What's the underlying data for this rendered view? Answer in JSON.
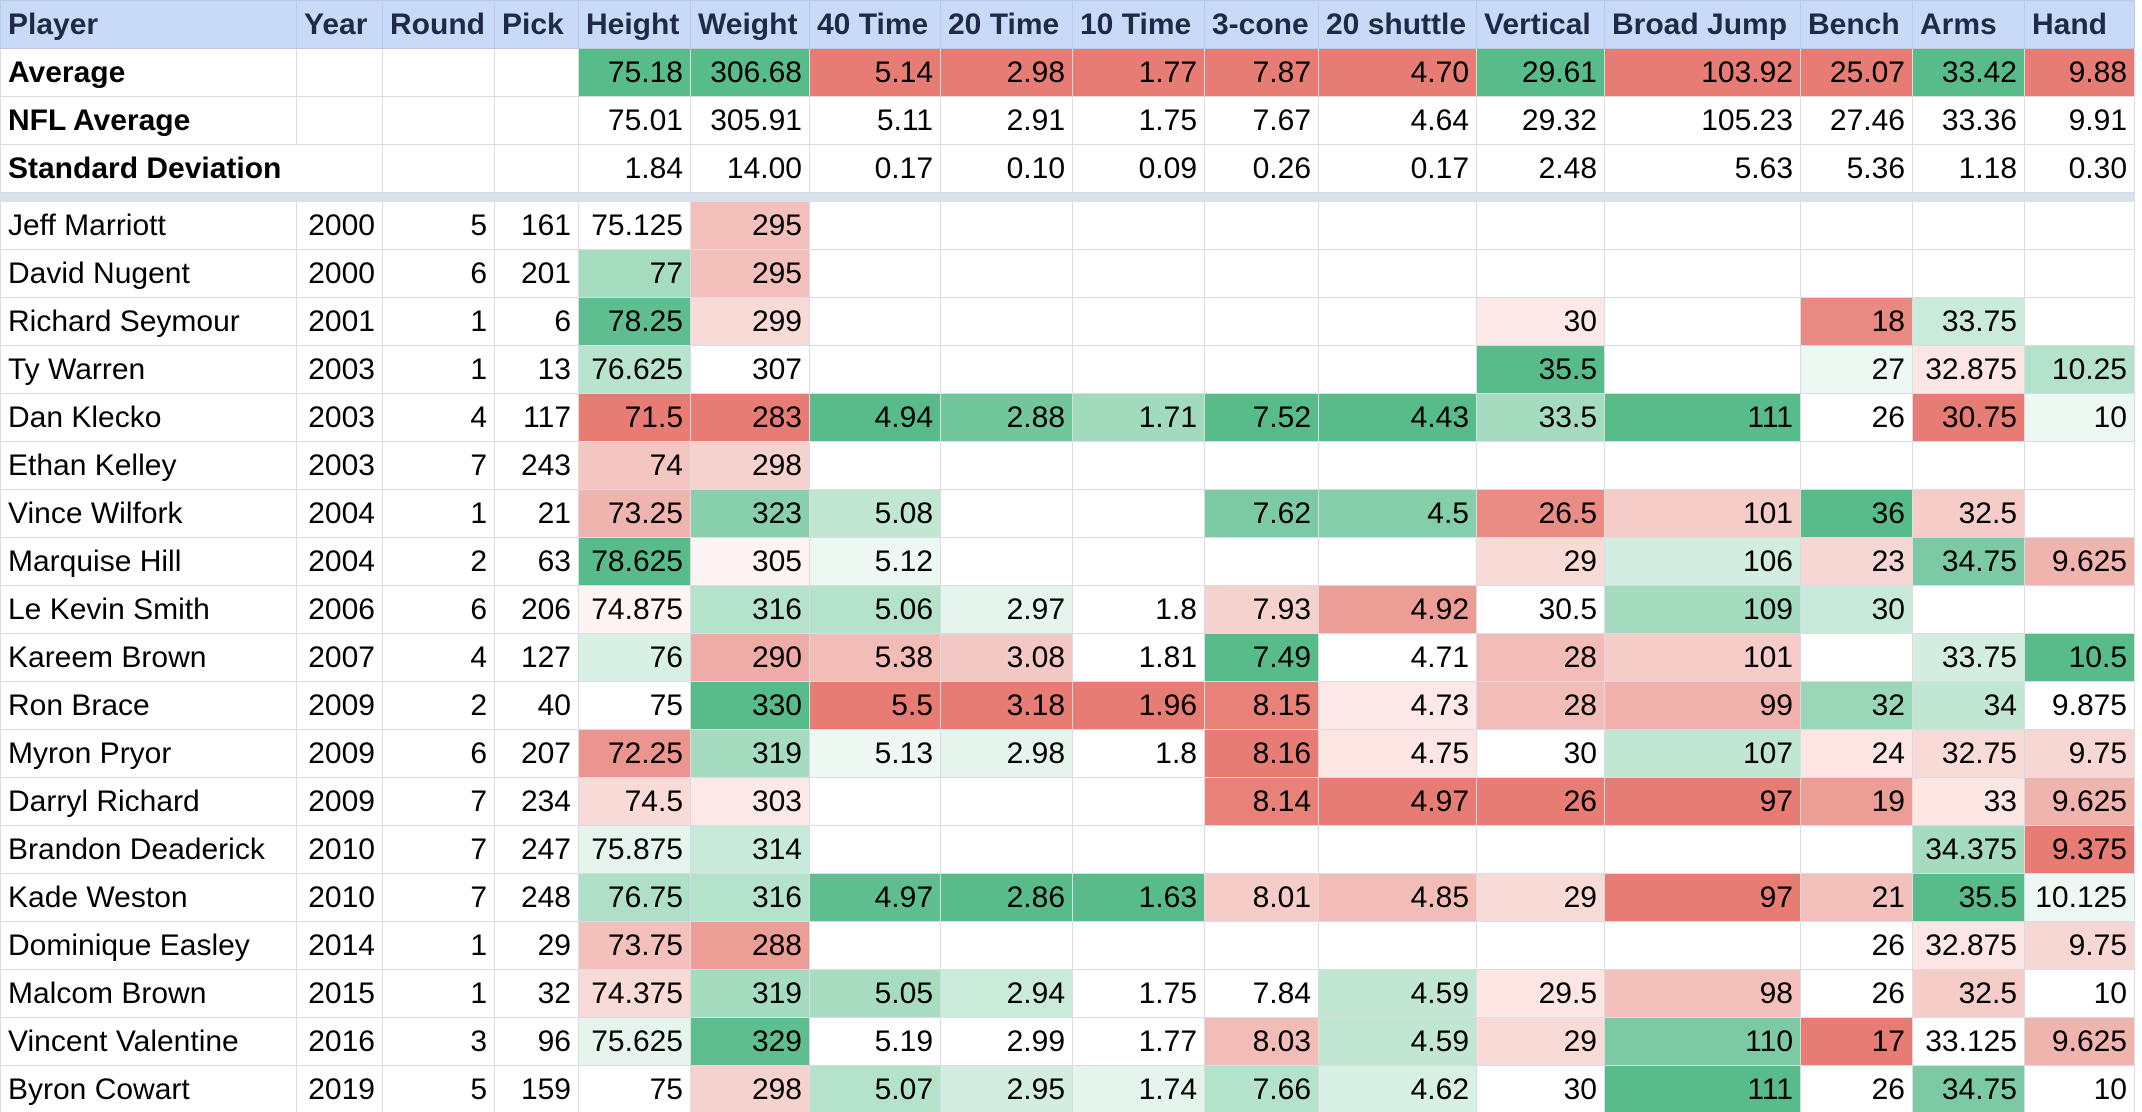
{
  "columns": [
    "Player",
    "Year",
    "Round",
    "Pick",
    "Height",
    "Weight",
    "40 Time",
    "20 Time",
    "10 Time",
    "3-cone",
    "20 shuttle",
    "Vertical",
    "Broad Jump",
    "Bench",
    "Arms",
    "Hand"
  ],
  "summary_rows": [
    {
      "label": "Average",
      "cells": [
        "",
        "",
        "",
        "75.18",
        "306.68",
        "5.14",
        "2.98",
        "1.77",
        "7.87",
        "4.70",
        "29.61",
        "103.92",
        "25.07",
        "33.42",
        "9.88"
      ]
    },
    {
      "label": "NFL Average",
      "cells": [
        "",
        "",
        "",
        "75.01",
        "305.91",
        "5.11",
        "2.91",
        "1.75",
        "7.67",
        "4.64",
        "29.32",
        "105.23",
        "27.46",
        "33.36",
        "9.91"
      ]
    },
    {
      "label": "Standard Deviation",
      "cells": [
        "",
        "",
        "",
        "1.84",
        "14.00",
        "0.17",
        "0.10",
        "0.09",
        "0.26",
        "0.17",
        "2.48",
        "5.63",
        "5.36",
        "1.18",
        "0.30"
      ]
    }
  ],
  "average_colors": [
    "",
    "",
    "",
    "#57bb8a",
    "#57bb8a",
    "#e67c73",
    "#e67c73",
    "#e67c73",
    "#e67c73",
    "#e67c73",
    "#57bb8a",
    "#e67c73",
    "#e67c73",
    "#57bb8a",
    "#e67c73"
  ],
  "players": [
    {
      "cells": [
        "Jeff Marriott",
        "2000",
        "5",
        "161",
        "75.125",
        "295",
        "",
        "",
        "",
        "",
        "",
        "",
        "",
        "",
        "",
        ""
      ],
      "colors": [
        "",
        "",
        "",
        "",
        "",
        "#f3c0bb",
        "",
        "",
        "",
        "",
        "",
        "",
        "",
        "",
        "",
        ""
      ]
    },
    {
      "cells": [
        "David Nugent",
        "2000",
        "6",
        "201",
        "77",
        "295",
        "",
        "",
        "",
        "",
        "",
        "",
        "",
        "",
        "",
        ""
      ],
      "colors": [
        "",
        "",
        "",
        "",
        "#a6dcc0",
        "#f3c0bb",
        "",
        "",
        "",
        "",
        "",
        "",
        "",
        "",
        "",
        ""
      ]
    },
    {
      "cells": [
        "Richard Seymour",
        "2001",
        "1",
        "6",
        "78.25",
        "299",
        "",
        "",
        "",
        "",
        "",
        "30",
        "",
        "18",
        "33.75",
        ""
      ],
      "colors": [
        "",
        "",
        "",
        "",
        "#5fbe8f",
        "#f8dad7",
        "",
        "",
        "",
        "",
        "",
        "#fce9e7",
        "",
        "#e88a82",
        "#cbebda",
        ""
      ]
    },
    {
      "cells": [
        "Ty Warren",
        "2003",
        "1",
        "13",
        "76.625",
        "307",
        "",
        "",
        "",
        "",
        "",
        "35.5",
        "",
        "27",
        "32.875",
        "10.25"
      ],
      "colors": [
        "",
        "",
        "",
        "",
        "#b8e3cd",
        "#ffffff",
        "",
        "",
        "",
        "",
        "",
        "#57bb8a",
        "",
        "#eef8f3",
        "#fbe6e4",
        "#b5e2cb"
      ]
    },
    {
      "cells": [
        "Dan Klecko",
        "2003",
        "4",
        "117",
        "71.5",
        "283",
        "4.94",
        "2.88",
        "1.71",
        "7.52",
        "4.43",
        "33.5",
        "111",
        "26",
        "30.75",
        "10"
      ],
      "colors": [
        "",
        "",
        "",
        "",
        "#e67c73",
        "#e67c73",
        "#57bb8a",
        "#72c69c",
        "#a2dabd",
        "#57bb8a",
        "#57bb8a",
        "#a5dbbf",
        "#57bb8a",
        "#ffffff",
        "#e67c73",
        "#eef8f3"
      ]
    },
    {
      "cells": [
        "Ethan Kelley",
        "2003",
        "7",
        "243",
        "74",
        "298",
        "",
        "",
        "",
        "",
        "",
        "",
        "",
        "",
        "",
        ""
      ],
      "colors": [
        "",
        "",
        "",
        "",
        "#f4c6c2",
        "#f6d2ce",
        "",
        "",
        "",
        "",
        "",
        "",
        "",
        "",
        "",
        ""
      ]
    },
    {
      "cells": [
        "Vince Wilfork",
        "2004",
        "1",
        "21",
        "73.25",
        "323",
        "5.08",
        "",
        "",
        "7.62",
        "4.5",
        "26.5",
        "101",
        "36",
        "32.5",
        ""
      ],
      "colors": [
        "",
        "",
        "",
        "",
        "#f0b4af",
        "#88cfac",
        "#c1e7d3",
        "",
        "",
        "#7bcaa3",
        "#85ceaa",
        "#e98c84",
        "#f5ccc8",
        "#57bb8a",
        "#f5ccc8",
        ""
      ]
    },
    {
      "cells": [
        "Marquise Hill",
        "2004",
        "2",
        "63",
        "78.625",
        "305",
        "5.12",
        "",
        "",
        "",
        "",
        "29",
        "106",
        "23",
        "34.75",
        "9.625"
      ],
      "colors": [
        "",
        "",
        "",
        "",
        "#57bb8a",
        "#fdf4f3",
        "#eef8f3",
        "",
        "",
        "",
        "",
        "#f8dad7",
        "#d3eee0",
        "#f7d7d3",
        "#7bcaa3",
        "#f0b4af"
      ]
    },
    {
      "cells": [
        "Le Kevin Smith",
        "2006",
        "6",
        "206",
        "74.875",
        "316",
        "5.06",
        "2.97",
        "1.8",
        "7.93",
        "4.92",
        "30.5",
        "109",
        "30",
        "",
        ""
      ],
      "colors": [
        "",
        "",
        "",
        "",
        "#fdf4f3",
        "#b5e2cb",
        "#b5e2cb",
        "#e5f5ed",
        "#ffffff",
        "#f6d2ce",
        "#ec9d96",
        "#ffffff",
        "#a5dbbf",
        "#c8eada",
        "",
        ""
      ]
    },
    {
      "cells": [
        "Kareem Brown",
        "2007",
        "4",
        "127",
        "76",
        "290",
        "5.38",
        "3.08",
        "1.81",
        "7.49",
        "4.71",
        "28",
        "101",
        "",
        "33.75",
        "10.5"
      ],
      "colors": [
        "",
        "",
        "",
        "",
        "#d9f0e4",
        "#ef ab a5",
        "#f2bcb7",
        "#f4c8c4",
        "#ffffff",
        "#57bb8a",
        "#ffffff",
        "#f2bcb7",
        "#f5ccc8",
        "",
        "#d3eee0",
        "#57bb8a"
      ]
    },
    {
      "cells": [
        "Ron Brace",
        "2009",
        "2",
        "40",
        "75",
        "330",
        "5.5",
        "3.18",
        "1.96",
        "8.15",
        "4.73",
        "28",
        "99",
        "32",
        "34",
        "9.875"
      ],
      "colors": [
        "",
        "",
        "",
        "",
        "#ffffff",
        "#57bb8a",
        "#e67c73",
        "#e67c73",
        "#e67c73",
        "#e88279",
        "#fce9e7",
        "#f2bcb7",
        "#f0b0ab",
        "#9ad7b8",
        "#c1e7d3",
        "#ffffff"
      ]
    },
    {
      "cells": [
        "Myron Pryor",
        "2009",
        "6",
        "207",
        "72.25",
        "319",
        "5.13",
        "2.98",
        "1.8",
        "8.16",
        "4.75",
        "30",
        "107",
        "24",
        "32.75",
        "9.75"
      ],
      "colors": [
        "",
        "",
        "",
        "",
        "#eb958e",
        "#a5dbbf",
        "#eef8f3",
        "#e5f5ed",
        "#ffffff",
        "#e67c73",
        "#fbe6e4",
        "#ffffff",
        "#c1e7d3",
        "#fbe6e4",
        "#f8dad7",
        "#f7d7d3"
      ]
    },
    {
      "cells": [
        "Darryl Richard",
        "2009",
        "7",
        "234",
        "74.5",
        "303",
        "",
        "",
        "",
        "8.14",
        "4.97",
        "26",
        "97",
        "19",
        "33",
        "9.625"
      ],
      "colors": [
        "",
        "",
        "",
        "",
        "#f8dad7",
        "#fce9e7",
        "",
        "",
        "",
        "#e88279",
        "#e67c73",
        "#e67c73",
        "#e67c73",
        "#ec9d96",
        "#fbe6e4",
        "#f0b4af"
      ]
    },
    {
      "cells": [
        "Brandon Deaderick",
        "2010",
        "7",
        "247",
        "75.875",
        "314",
        "",
        "",
        "",
        "",
        "",
        "",
        "",
        "",
        "34.375",
        "9.375"
      ],
      "colors": [
        "",
        "",
        "",
        "",
        "#e5f5ed",
        "#c8eada",
        "",
        "",
        "",
        "",
        "",
        "",
        "",
        "",
        "#a5dbbf",
        "#e67c73"
      ]
    },
    {
      "cells": [
        "Kade Weston",
        "2010",
        "7",
        "248",
        "76.75",
        "316",
        "4.97",
        "2.86",
        "1.63",
        "8.01",
        "4.85",
        "29",
        "97",
        "21",
        "35.5",
        "10.125"
      ],
      "colors": [
        "",
        "",
        "",
        "",
        "#afdfc7",
        "#b5e2cb",
        "#5fbe8f",
        "#57bb8a",
        "#57bb8a",
        "#f5ccc8",
        "#f2bcb7",
        "#f8dad7",
        "#e67c73",
        "#f3c0bb",
        "#57bb8a",
        "#eef8f3"
      ]
    },
    {
      "cells": [
        "Dominique Easley",
        "2014",
        "1",
        "29",
        "73.75",
        "288",
        "",
        "",
        "",
        "",
        "",
        "",
        "",
        "26",
        "32.875",
        "9.75"
      ],
      "colors": [
        "",
        "",
        "",
        "",
        "#f3c0bb",
        "#ec9d96",
        "",
        "",
        "",
        "",
        "",
        "",
        "",
        "#ffffff",
        "#fbe6e4",
        "#f7d7d3"
      ]
    },
    {
      "cells": [
        "Malcom Brown",
        "2015",
        "1",
        "32",
        "74.375",
        "319",
        "5.05",
        "2.94",
        "1.75",
        "7.84",
        "4.59",
        "29.5",
        "98",
        "26",
        "32.5",
        "10"
      ],
      "colors": [
        "",
        "",
        "",
        "",
        "#f8dad7",
        "#a5dbbf",
        "#a8dcc1",
        "#cbebda",
        "#ffffff",
        "#ffffff",
        "#c1e7d3",
        "#fbe6e4",
        "#f3c0bb",
        "#ffffff",
        "#f5ccc8",
        "#ffffff"
      ]
    },
    {
      "cells": [
        "Vincent Valentine",
        "2016",
        "3",
        "96",
        "75.625",
        "329",
        "5.19",
        "2.99",
        "1.77",
        "8.03",
        "4.59",
        "29",
        "110",
        "17",
        "33.125",
        "9.625"
      ],
      "colors": [
        "",
        "",
        "",
        "",
        "#e5f5ed",
        "#5fbe8f",
        "#ffffff",
        "#ffffff",
        "#ffffff",
        "#f2bcb7",
        "#c1e7d3",
        "#f8dad7",
        "#7bcaa3",
        "#e67c73",
        "#ffffff",
        "#f0b4af"
      ]
    },
    {
      "cells": [
        "Byron Cowart",
        "2019",
        "5",
        "159",
        "75",
        "298",
        "5.07",
        "2.95",
        "1.74",
        "7.66",
        "4.62",
        "30",
        "111",
        "26",
        "34.75",
        "10"
      ],
      "colors": [
        "",
        "",
        "",
        "",
        "#ffffff",
        "#f6d2ce",
        "#b5e2cb",
        "#d3eee0",
        "#e5f5ed",
        "#b5e2cb",
        "#d9f0e4",
        "#ffffff",
        "#57bb8a",
        "#ffffff",
        "#7bcaa3",
        "#ffffff"
      ]
    }
  ]
}
